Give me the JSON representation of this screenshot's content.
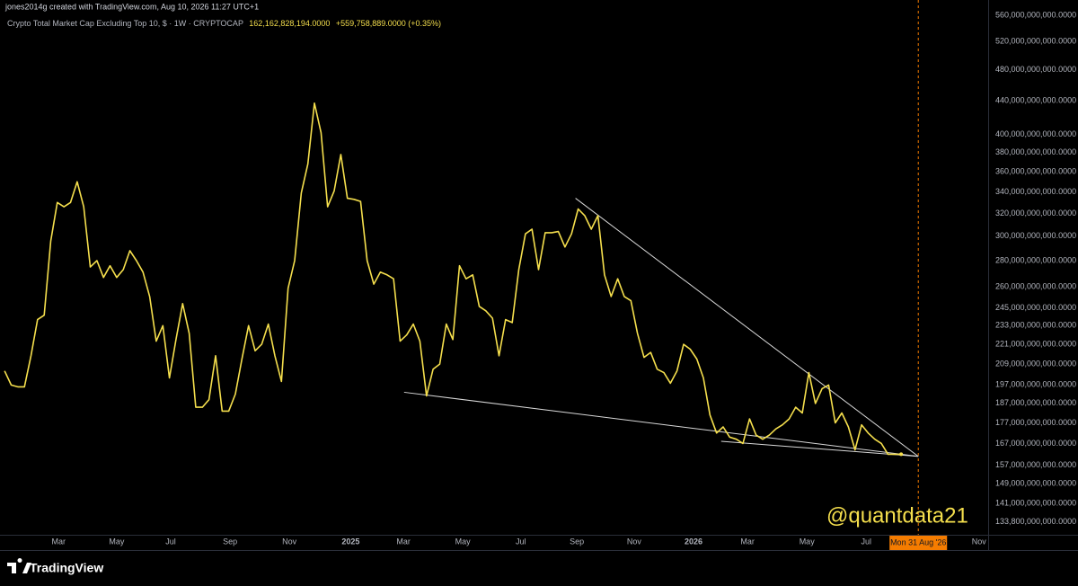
{
  "header": {
    "author_line": "jones2014g created with TradingView.com, Aug 10, 2026 11:27 UTC+1"
  },
  "chart_data": {
    "type": "line",
    "title": "Crypto Total Market Cap Excluding Top 10, $ · 1W · CRYPTOCAP",
    "last_value_label": "162,162,828,194.0000",
    "change_label": "+559,758,889.0000 (+0.35%)",
    "log_scale": true,
    "grid": false,
    "xlim": [
      -0.7,
      149.2
    ],
    "ylim": [
      129000000000.0,
      585000000000.0
    ],
    "xticks": [
      {
        "value": 8.2,
        "label": "Mar"
      },
      {
        "value": 17.0,
        "label": "May"
      },
      {
        "value": 25.2,
        "label": "Jul"
      },
      {
        "value": 34.2,
        "label": "Sep"
      },
      {
        "value": 43.2,
        "label": "Nov"
      },
      {
        "value": 52.5,
        "label": "2025"
      },
      {
        "value": 60.5,
        "label": "Mar"
      },
      {
        "value": 69.5,
        "label": "May"
      },
      {
        "value": 78.3,
        "label": "Jul"
      },
      {
        "value": 86.8,
        "label": "Sep"
      },
      {
        "value": 95.5,
        "label": "Nov"
      },
      {
        "value": 104.5,
        "label": "2026"
      },
      {
        "value": 112.7,
        "label": "Mar"
      },
      {
        "value": 121.7,
        "label": "May"
      },
      {
        "value": 130.7,
        "label": "Jul"
      },
      {
        "value": 147.8,
        "label": "Nov"
      }
    ],
    "yticks": [
      {
        "value": 560000000000.0,
        "label": "560,000,000,000.0000"
      },
      {
        "value": 520000000000.0,
        "label": "520,000,000,000.0000"
      },
      {
        "value": 480000000000.0,
        "label": "480,000,000,000.0000"
      },
      {
        "value": 440000000000.0,
        "label": "440,000,000,000.0000"
      },
      {
        "value": 400000000000.0,
        "label": "400,000,000,000.0000"
      },
      {
        "value": 380000000000.0,
        "label": "380,000,000,000.0000"
      },
      {
        "value": 360000000000.0,
        "label": "360,000,000,000.0000"
      },
      {
        "value": 340000000000.0,
        "label": "340,000,000,000.0000"
      },
      {
        "value": 320000000000.0,
        "label": "320,000,000,000.0000"
      },
      {
        "value": 300000000000.0,
        "label": "300,000,000,000.0000"
      },
      {
        "value": 280000000000.0,
        "label": "280,000,000,000.0000"
      },
      {
        "value": 260000000000.0,
        "label": "260,000,000,000.0000"
      },
      {
        "value": 245000000000.0,
        "label": "245,000,000,000.0000"
      },
      {
        "value": 233000000000.0,
        "label": "233,000,000,000.0000"
      },
      {
        "value": 221000000000.0,
        "label": "221,000,000,000.0000"
      },
      {
        "value": 209000000000.0,
        "label": "209,000,000,000.0000"
      },
      {
        "value": 197000000000.0,
        "label": "197,000,000,000.0000"
      },
      {
        "value": 187000000000.0,
        "label": "187,000,000,000.0000"
      },
      {
        "value": 177000000000.0,
        "label": "177,000,000,000.0000"
      },
      {
        "value": 167000000000.0,
        "label": "167,000,000,000.0000"
      },
      {
        "value": 157000000000.0,
        "label": "157,000,000,000.0000"
      },
      {
        "value": 149000000000.0,
        "label": "149,000,000,000.0000"
      },
      {
        "value": 141000000000.0,
        "label": "141,000,000,000.0000"
      },
      {
        "value": 133800000000.0,
        "label": "133,800,000,000.0000"
      }
    ],
    "color": "#f5df4d",
    "values": [
      205000000000.0,
      197000000000.0,
      196000000000.0,
      196000000000.0,
      214000000000.0,
      237000000000.0,
      240000000000.0,
      296000000000.0,
      330000000000.0,
      326000000000.0,
      330000000000.0,
      350000000000.0,
      326000000000.0,
      275000000000.0,
      280000000000.0,
      267000000000.0,
      276000000000.0,
      267000000000.0,
      273000000000.0,
      288000000000.0,
      280000000000.0,
      271000000000.0,
      253000000000.0,
      223000000000.0,
      233000000000.0,
      201000000000.0,
      224000000000.0,
      248000000000.0,
      228000000000.0,
      185000000000.0,
      185000000000.0,
      189000000000.0,
      214000000000.0,
      183000000000.0,
      183000000000.0,
      192000000000.0,
      212000000000.0,
      233000000000.0,
      217000000000.0,
      221000000000.0,
      234000000000.0,
      214000000000.0,
      199000000000.0,
      259000000000.0,
      280000000000.0,
      339000000000.0,
      368000000000.0,
      437000000000.0,
      402000000000.0,
      326000000000.0,
      341000000000.0,
      378000000000.0,
      334000000000.0,
      333000000000.0,
      331000000000.0,
      280000000000.0,
      262000000000.0,
      271000000000.0,
      269000000000.0,
      266000000000.0,
      223000000000.0,
      227000000000.0,
      234000000000.0,
      223000000000.0,
      191000000000.0,
      206000000000.0,
      209000000000.0,
      234000000000.0,
      224000000000.0,
      276000000000.0,
      266000000000.0,
      269000000000.0,
      246000000000.0,
      243000000000.0,
      238000000000.0,
      214000000000.0,
      237000000000.0,
      235000000000.0,
      273000000000.0,
      302000000000.0,
      306000000000.0,
      273000000000.0,
      303000000000.0,
      303000000000.0,
      304000000000.0,
      291000000000.0,
      302000000000.0,
      324000000000.0,
      318000000000.0,
      306000000000.0,
      318000000000.0,
      269000000000.0,
      253000000000.0,
      266000000000.0,
      253000000000.0,
      250000000000.0,
      228000000000.0,
      213000000000.0,
      216000000000.0,
      206000000000.0,
      204000000000.0,
      198000000000.0,
      205000000000.0,
      221000000000.0,
      218000000000.0,
      212000000000.0,
      201000000000.0,
      181000000000.0,
      172000000000.0,
      175000000000.0,
      170000000000.0,
      169000000000.0,
      167000000000.0,
      179000000000.0,
      171000000000.0,
      169000000000.0,
      171000000000.0,
      174000000000.0,
      176000000000.0,
      179000000000.0,
      185000000000.0,
      182000000000.0,
      204000000000.0,
      187000000000.0,
      195000000000.0,
      197000000000.0,
      177000000000.0,
      182000000000.0,
      175000000000.0,
      164000000000.0,
      176000000000.0,
      172000000000.0,
      169000000000.0,
      167000000000.0,
      162000000000.0,
      162000000000.0,
      162000000000.0
    ],
    "trend_lines": [
      {
        "color": "#d8d8d8",
        "x": [
          86.6,
          138.6
        ],
        "values": [
          334000000000.0,
          161000000000.0
        ]
      },
      {
        "color": "#d8d8d8",
        "x": [
          60.6,
          138.6
        ],
        "values": [
          193000000000.0,
          161000000000.0
        ]
      },
      {
        "color": "#d8d8d8",
        "x": [
          108.7,
          138.6
        ],
        "values": [
          168000000000.0,
          161000000000.0
        ]
      }
    ],
    "crosshair": {
      "x": 138.6,
      "label": "Mon 31 Aug '26",
      "color": "#f57c00"
    }
  },
  "watermark": "@quantdata21",
  "footer": {
    "logo_text": "TradingView"
  }
}
